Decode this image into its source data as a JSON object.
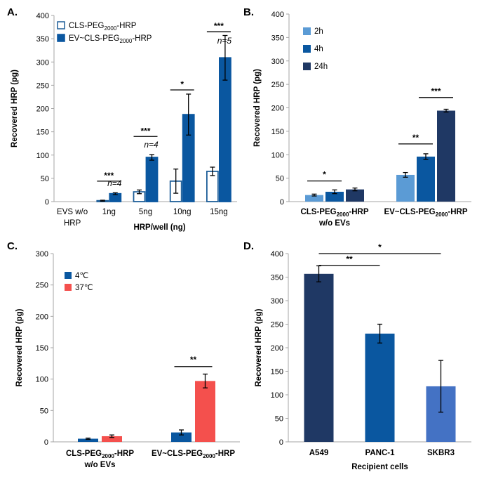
{
  "chart_data": [
    {
      "panel": "A.",
      "type": "bar",
      "ylabel": "Recovered HRP (pg)",
      "xlabel": "HRP/well (ng)",
      "ylim": [
        0,
        400
      ],
      "yticks": [
        0,
        50,
        100,
        150,
        200,
        250,
        300,
        350,
        400
      ],
      "categories": [
        "EVS w/o",
        "1ng",
        "5ng",
        "10ng",
        "15ng"
      ],
      "category_sublabels": [
        "HRP",
        "",
        "",
        "",
        ""
      ],
      "legend": [
        "CLS-PEG",
        "EV~CLS-PEG"
      ],
      "legend_sub": "2000",
      "legend_suffix": "-HRP",
      "series": [
        {
          "name": "CLS-PEG2000-HRP",
          "color": "#ffffff",
          "stroke": "#1f5f99",
          "values": [
            0,
            2,
            21,
            44,
            65
          ],
          "errors": [
            0,
            1,
            4,
            26,
            9
          ]
        },
        {
          "name": "EV~CLS-PEG2000-HRP",
          "color": "#0a57a0",
          "stroke": "#0a57a0",
          "values": [
            0,
            17,
            95,
            187,
            309
          ],
          "errors": [
            0,
            2,
            6,
            44,
            48
          ]
        }
      ],
      "significance": [
        {
          "cat": 1,
          "label": "***",
          "y": 44
        },
        {
          "cat": 2,
          "label": "***",
          "y": 140
        },
        {
          "cat": 3,
          "label": "*",
          "y": 240
        },
        {
          "cat": 4,
          "label": "***",
          "y": 365
        }
      ],
      "n_labels": [
        {
          "cat": 1,
          "label": "n=4",
          "y": 33
        },
        {
          "cat": 2,
          "label": "n=4",
          "y": 116
        },
        {
          "cat": 4,
          "label": "n=5",
          "y": 340
        }
      ]
    },
    {
      "panel": "B.",
      "type": "bar",
      "ylabel": "Recovered HRP (pg)",
      "ylim": [
        0,
        400
      ],
      "yticks": [
        0,
        50,
        100,
        150,
        200,
        250,
        300,
        350,
        400
      ],
      "categories": [
        "CLS-PEG",
        "EV~CLS-PEG"
      ],
      "category_sub": "2000",
      "category_suffix": "-HRP",
      "category_sublabels": [
        "w/o EVs",
        ""
      ],
      "legend": [
        "2h",
        "4h",
        "24h"
      ],
      "series": [
        {
          "name": "2h",
          "color": "#5b9bd5",
          "values": [
            14,
            57
          ],
          "errors": [
            2,
            5
          ]
        },
        {
          "name": "4h",
          "color": "#0a57a0",
          "values": [
            21,
            96
          ],
          "errors": [
            4,
            6
          ]
        },
        {
          "name": "24h",
          "color": "#1f3864",
          "values": [
            26,
            194
          ],
          "errors": [
            3,
            3
          ]
        }
      ],
      "significance": [
        {
          "label": "*",
          "cat": 0,
          "from": 0,
          "to": 1,
          "y": 44
        },
        {
          "label": "**",
          "cat": 1,
          "from": 0,
          "to": 1,
          "y": 123
        },
        {
          "label": "***",
          "cat": 1,
          "from": 1,
          "to": 2,
          "y": 222
        }
      ]
    },
    {
      "panel": "C.",
      "type": "bar",
      "ylabel": "Recovered HRP (pg)",
      "ylim": [
        0,
        300
      ],
      "yticks": [
        0,
        50,
        100,
        150,
        200,
        250,
        300
      ],
      "categories": [
        "CLS-PEG",
        "EV~CLS-PEG"
      ],
      "category_sub": "2000",
      "category_suffix": "-HRP",
      "category_sublabels": [
        "w/o EVs",
        ""
      ],
      "legend": [
        "4℃",
        "37℃"
      ],
      "series": [
        {
          "name": "4℃",
          "color": "#0a57a0",
          "values": [
            5,
            15
          ],
          "errors": [
            1,
            4
          ]
        },
        {
          "name": "37℃",
          "color": "#f4504d",
          "values": [
            9,
            97
          ],
          "errors": [
            2,
            11
          ]
        }
      ],
      "significance": [
        {
          "label": "**",
          "cat": 1,
          "from": 0,
          "to": 1,
          "y": 120
        }
      ]
    },
    {
      "panel": "D.",
      "type": "bar",
      "ylabel": "Recovered HRP (pg)",
      "xlabel": "Recipient cells",
      "ylim": [
        0,
        400
      ],
      "yticks": [
        0,
        50,
        100,
        150,
        200,
        250,
        300,
        350,
        400
      ],
      "categories": [
        "A549",
        "PANC-1",
        "SKBR3"
      ],
      "values": [
        357,
        230,
        118
      ],
      "errors": [
        17,
        20,
        55
      ],
      "colors": [
        "#1f3864",
        "#0a57a0",
        "#4472c4"
      ],
      "significance": [
        {
          "label": "*",
          "from": 0,
          "to": 2,
          "y": 400
        },
        {
          "label": "**",
          "from": 0,
          "to": 1,
          "y": 375
        }
      ]
    }
  ]
}
